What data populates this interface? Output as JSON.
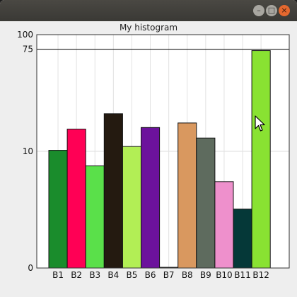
{
  "window": {
    "title": "",
    "buttons": {
      "minimize": "–",
      "maximize": "□",
      "close": "×"
    }
  },
  "chart_data": {
    "type": "bar",
    "title": "My histogram",
    "xlabel": "",
    "ylabel": "",
    "y_scale": "log",
    "ylim": [
      0,
      100
    ],
    "grid": true,
    "reference_line": 75,
    "y_ticks": [
      "0",
      "10",
      "75",
      "100"
    ],
    "categories": [
      "B1",
      "B2",
      "B3",
      "B4",
      "B5",
      "B6",
      "B7",
      "B8",
      "B9",
      "B10",
      "B11",
      "B12"
    ],
    "values": [
      10.2,
      15.5,
      7.5,
      21,
      11,
      16,
      1,
      17.5,
      13,
      5.5,
      3.2,
      73
    ],
    "colors": [
      "#1a8c2c",
      "#ff0055",
      "#5ae04a",
      "#241a10",
      "#b2ee55",
      "#6c129c",
      "#221c14",
      "#d9985f",
      "#5e6b5e",
      "#ee90cc",
      "#053838",
      "#89e232"
    ]
  }
}
